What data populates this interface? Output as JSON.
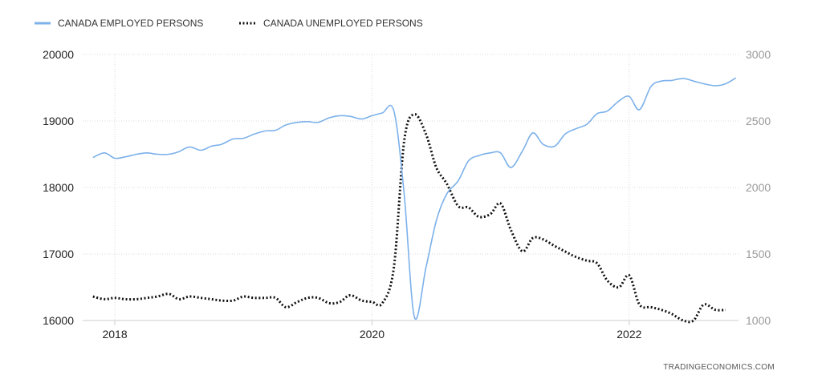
{
  "chart_data": {
    "type": "line",
    "title": "",
    "xlabel": "",
    "grid": true,
    "legend_placement": "top-left",
    "xlim": [
      2017.75,
      2022.85
    ],
    "x_ticks": [
      "2018",
      "2020",
      "2022"
    ],
    "y_left": {
      "ylim": [
        16000,
        20000
      ],
      "ticks": [
        "20000",
        "19000",
        "18000",
        "17000",
        "16000"
      ]
    },
    "y_right": {
      "ylim": [
        1000,
        3000
      ],
      "ticks": [
        "3000",
        "2500",
        "2000",
        "1500",
        "1000"
      ]
    },
    "series": [
      {
        "name": "CANADA EMPLOYED PERSONS",
        "axis": "left",
        "style": "solid",
        "color": "#7cb1ea",
        "points": [
          [
            2017.83,
            18450
          ],
          [
            2017.92,
            18520
          ],
          [
            2018.0,
            18440
          ],
          [
            2018.08,
            18460
          ],
          [
            2018.17,
            18500
          ],
          [
            2018.25,
            18520
          ],
          [
            2018.33,
            18500
          ],
          [
            2018.42,
            18500
          ],
          [
            2018.5,
            18540
          ],
          [
            2018.58,
            18610
          ],
          [
            2018.67,
            18560
          ],
          [
            2018.75,
            18620
          ],
          [
            2018.83,
            18650
          ],
          [
            2018.92,
            18730
          ],
          [
            2019.0,
            18740
          ],
          [
            2019.08,
            18800
          ],
          [
            2019.17,
            18850
          ],
          [
            2019.25,
            18860
          ],
          [
            2019.33,
            18940
          ],
          [
            2019.42,
            18980
          ],
          [
            2019.5,
            18990
          ],
          [
            2019.58,
            18980
          ],
          [
            2019.67,
            19050
          ],
          [
            2019.75,
            19080
          ],
          [
            2019.83,
            19070
          ],
          [
            2019.92,
            19030
          ],
          [
            2020.0,
            19080
          ],
          [
            2020.08,
            19120
          ],
          [
            2020.17,
            19150
          ],
          [
            2020.25,
            17900
          ],
          [
            2020.33,
            16050
          ],
          [
            2020.42,
            16800
          ],
          [
            2020.5,
            17500
          ],
          [
            2020.58,
            17900
          ],
          [
            2020.67,
            18100
          ],
          [
            2020.75,
            18400
          ],
          [
            2020.83,
            18480
          ],
          [
            2020.92,
            18520
          ],
          [
            2021.0,
            18520
          ],
          [
            2021.08,
            18300
          ],
          [
            2021.17,
            18550
          ],
          [
            2021.25,
            18820
          ],
          [
            2021.33,
            18650
          ],
          [
            2021.42,
            18620
          ],
          [
            2021.5,
            18800
          ],
          [
            2021.58,
            18880
          ],
          [
            2021.67,
            18950
          ],
          [
            2021.75,
            19110
          ],
          [
            2021.83,
            19150
          ],
          [
            2021.92,
            19300
          ],
          [
            2022.0,
            19370
          ],
          [
            2022.08,
            19170
          ],
          [
            2022.17,
            19520
          ],
          [
            2022.25,
            19600
          ],
          [
            2022.33,
            19610
          ],
          [
            2022.42,
            19640
          ],
          [
            2022.5,
            19600
          ],
          [
            2022.58,
            19560
          ],
          [
            2022.67,
            19530
          ],
          [
            2022.75,
            19560
          ],
          [
            2022.83,
            19650
          ]
        ]
      },
      {
        "name": "CANADA UNEMPLOYED PERSONS",
        "axis": "right",
        "style": "dotted",
        "color": "#111111",
        "points": [
          [
            2017.83,
            1180
          ],
          [
            2017.92,
            1160
          ],
          [
            2018.0,
            1170
          ],
          [
            2018.08,
            1160
          ],
          [
            2018.17,
            1160
          ],
          [
            2018.25,
            1170
          ],
          [
            2018.33,
            1180
          ],
          [
            2018.42,
            1200
          ],
          [
            2018.5,
            1160
          ],
          [
            2018.58,
            1180
          ],
          [
            2018.67,
            1170
          ],
          [
            2018.75,
            1160
          ],
          [
            2018.83,
            1150
          ],
          [
            2018.92,
            1150
          ],
          [
            2019.0,
            1180
          ],
          [
            2019.08,
            1170
          ],
          [
            2019.17,
            1170
          ],
          [
            2019.25,
            1170
          ],
          [
            2019.33,
            1100
          ],
          [
            2019.42,
            1140
          ],
          [
            2019.5,
            1170
          ],
          [
            2019.58,
            1170
          ],
          [
            2019.67,
            1130
          ],
          [
            2019.75,
            1140
          ],
          [
            2019.83,
            1190
          ],
          [
            2019.92,
            1150
          ],
          [
            2020.0,
            1140
          ],
          [
            2020.08,
            1130
          ],
          [
            2020.17,
            1400
          ],
          [
            2020.25,
            2350
          ],
          [
            2020.33,
            2550
          ],
          [
            2020.42,
            2400
          ],
          [
            2020.5,
            2150
          ],
          [
            2020.58,
            2030
          ],
          [
            2020.67,
            1860
          ],
          [
            2020.75,
            1850
          ],
          [
            2020.83,
            1780
          ],
          [
            2020.92,
            1800
          ],
          [
            2021.0,
            1880
          ],
          [
            2021.08,
            1680
          ],
          [
            2021.17,
            1520
          ],
          [
            2021.25,
            1620
          ],
          [
            2021.33,
            1610
          ],
          [
            2021.42,
            1560
          ],
          [
            2021.5,
            1520
          ],
          [
            2021.58,
            1480
          ],
          [
            2021.67,
            1450
          ],
          [
            2021.75,
            1430
          ],
          [
            2021.83,
            1300
          ],
          [
            2021.92,
            1250
          ],
          [
            2022.0,
            1340
          ],
          [
            2022.08,
            1120
          ],
          [
            2022.17,
            1100
          ],
          [
            2022.25,
            1080
          ],
          [
            2022.33,
            1050
          ],
          [
            2022.42,
            1000
          ],
          [
            2022.5,
            1000
          ],
          [
            2022.58,
            1120
          ],
          [
            2022.67,
            1080
          ],
          [
            2022.75,
            1080
          ]
        ]
      }
    ]
  },
  "source_label": "TRADINGECONOMICS.COM"
}
